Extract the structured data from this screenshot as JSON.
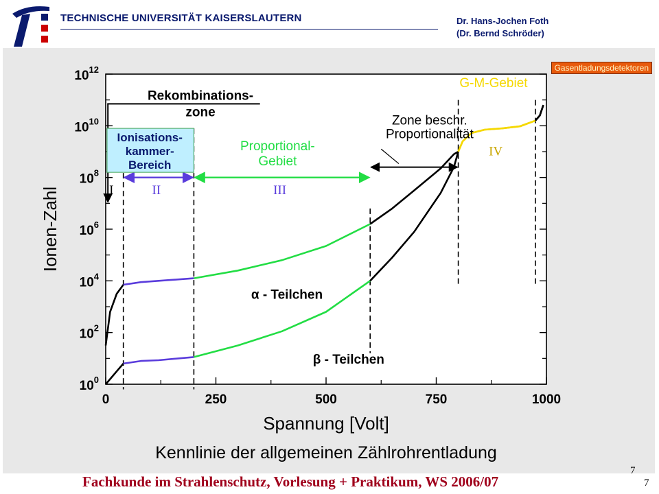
{
  "header": {
    "university": "TECHNISCHE UNIVERSITÄT KAISERSLAUTERN",
    "author_line1": "Dr. Hans-Jochen Foth",
    "author_line2": "(Dr. Bernd Schröder)"
  },
  "badge": "Gasentladungsdetektoren",
  "footer": "Fachkunde im Strahlenschutz, Vorlesung + Praktikum, WS 2006/07",
  "page_numbers": [
    "7",
    "7"
  ],
  "colors": {
    "title_blue": "#0a1a6e",
    "footer_red": "#a0001c",
    "badge_orange": "#e85a0c",
    "region_purple": "#5a3cdc",
    "region_green": "#22dd44",
    "region_yellow": "#f5d800",
    "box_fill": "#bfefff"
  },
  "chart_data": {
    "type": "line",
    "title": "Kennlinie der allgemeinen Zählrohrentladung",
    "xlabel": "Spannung [Volt]",
    "ylabel": "Ionen-Zahl",
    "xlim": [
      0,
      1000
    ],
    "ylim_log10": [
      0,
      12
    ],
    "y_scale": "log",
    "x_ticks": [
      "0",
      "250",
      "500",
      "750",
      "1000"
    ],
    "y_ticks": [
      {
        "base": "10",
        "exp": "0"
      },
      {
        "base": "10",
        "exp": "2"
      },
      {
        "base": "10",
        "exp": "4"
      },
      {
        "base": "10",
        "exp": "6"
      },
      {
        "base": "10",
        "exp": "8"
      },
      {
        "base": "10",
        "exp": "10"
      },
      {
        "base": "10",
        "exp": "12"
      }
    ],
    "region_boundaries_volt": [
      40,
      200,
      600,
      800,
      975
    ],
    "series": [
      {
        "name": "α - Teilchen",
        "points": [
          [
            0,
            1.5
          ],
          [
            10,
            2.8
          ],
          [
            25,
            3.5
          ],
          [
            40,
            3.85
          ],
          [
            80,
            3.95
          ],
          [
            120,
            4.0
          ],
          [
            200,
            4.1
          ],
          [
            300,
            4.4
          ],
          [
            400,
            4.8
          ],
          [
            500,
            5.35
          ],
          [
            600,
            6.2
          ],
          [
            650,
            6.8
          ],
          [
            700,
            7.5
          ],
          [
            760,
            8.35
          ],
          [
            790,
            8.9
          ],
          [
            800,
            9.0
          ],
          [
            810,
            9.4
          ],
          [
            830,
            9.72
          ],
          [
            860,
            9.85
          ],
          [
            900,
            9.9
          ],
          [
            940,
            9.98
          ],
          [
            975,
            10.2
          ],
          [
            985,
            10.4
          ],
          [
            993,
            10.8
          ]
        ]
      },
      {
        "name": "β - Teilchen",
        "points": [
          [
            0,
            0
          ],
          [
            10,
            0.2
          ],
          [
            25,
            0.5
          ],
          [
            40,
            0.8
          ],
          [
            80,
            0.9
          ],
          [
            120,
            0.93
          ],
          [
            200,
            1.05
          ],
          [
            300,
            1.5
          ],
          [
            400,
            2.05
          ],
          [
            500,
            2.8
          ],
          [
            600,
            4.0
          ],
          [
            650,
            4.9
          ],
          [
            700,
            5.9
          ],
          [
            760,
            7.4
          ],
          [
            790,
            8.4
          ],
          [
            800,
            9.0
          ],
          [
            810,
            9.4
          ],
          [
            830,
            9.72
          ],
          [
            860,
            9.85
          ],
          [
            900,
            9.9
          ],
          [
            940,
            9.98
          ],
          [
            975,
            10.2
          ],
          [
            985,
            10.4
          ],
          [
            993,
            10.8
          ]
        ]
      }
    ],
    "regions": [
      {
        "numeral": "I",
        "label": [
          "Rekombinations-",
          "zone"
        ]
      },
      {
        "numeral": "II",
        "label": [
          "Ionisations-",
          "kammer-",
          "Bereich"
        ]
      },
      {
        "numeral": "III",
        "label": [
          "Proportional-",
          "Gebiet"
        ]
      },
      {
        "numeral": "",
        "label": [
          "Zone beschr.",
          "Proportionalität"
        ]
      },
      {
        "numeral": "IV",
        "label": [
          "G-M-Gebiet"
        ]
      }
    ]
  }
}
